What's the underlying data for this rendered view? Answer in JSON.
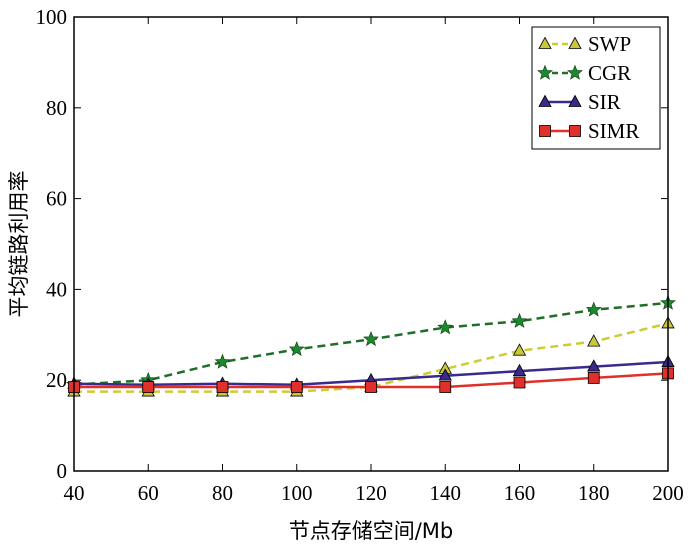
{
  "chart_data": {
    "type": "line",
    "xlabel": "节点存储空间/Mb",
    "ylabel": "平均链路利用率",
    "xlim": [
      40,
      200
    ],
    "ylim": [
      0,
      100
    ],
    "xticks": [
      40,
      60,
      80,
      100,
      120,
      140,
      160,
      180,
      200
    ],
    "yticks": [
      0,
      20,
      40,
      60,
      80,
      100
    ],
    "grid": false,
    "legend_position": "top-right",
    "x": [
      40,
      60,
      80,
      100,
      120,
      140,
      160,
      180,
      200
    ],
    "series": [
      {
        "name": "SWP",
        "values": [
          17.5,
          17.5,
          17.5,
          17.5,
          18.5,
          22.5,
          26.5,
          28.5,
          32.5
        ],
        "color": "#cccc33",
        "marker_fill": "#c8c83c",
        "line_style": "dashed",
        "marker": "triangle"
      },
      {
        "name": "CGR",
        "values": [
          19,
          20,
          24,
          26.8,
          29,
          31.6,
          33,
          35.5,
          37
        ],
        "color": "#1e6e28",
        "marker_fill": "#1a8a2c",
        "line_style": "dashed",
        "marker": "star"
      },
      {
        "name": "SIR",
        "values": [
          19.2,
          19,
          19.2,
          19,
          20,
          21,
          22,
          23,
          24
        ],
        "color": "#3a2a8c",
        "marker_fill": "#3a2a8c",
        "line_style": "solid",
        "marker": "triangle"
      },
      {
        "name": "SIMR",
        "values": [
          18.5,
          18.5,
          18.5,
          18.5,
          18.5,
          18.5,
          19.5,
          20.5,
          21.5
        ],
        "color": "#e0302a",
        "marker_fill": "#e0302a",
        "line_style": "solid",
        "marker": "square"
      }
    ]
  }
}
